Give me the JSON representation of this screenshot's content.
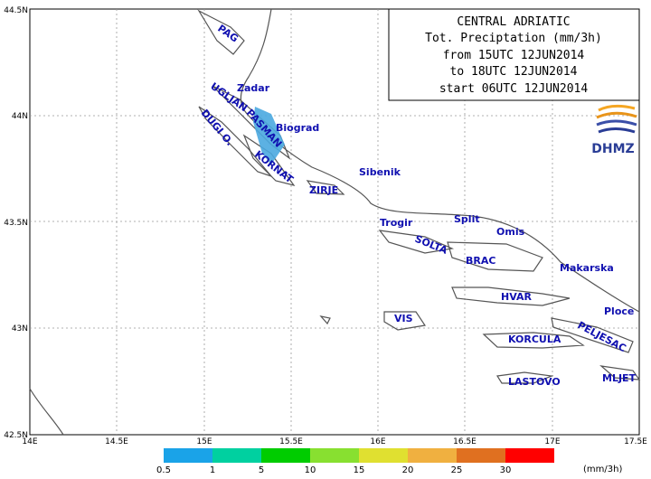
{
  "info": {
    "title": "CENTRAL ADRIATIC",
    "variable": "Tot. Preciptation (mm/3h)",
    "from": "from 15UTC 12JUN2014",
    "to": "to 18UTC 12JUN2014",
    "start": "start 06UTC 12JUN2014"
  },
  "logo": {
    "text": "DHMZ"
  },
  "axes": {
    "lat_labels": [
      "44.5N",
      "44N",
      "43.5N",
      "43N",
      "42.5N"
    ],
    "lon_labels": [
      "14E",
      "14.5E",
      "15E",
      "15.5E",
      "16E",
      "16.5E",
      "17E",
      "17.5E"
    ]
  },
  "places": [
    "PAG",
    "Zadar",
    "UGLJAN",
    "PASMAN",
    "Biograd",
    "DUGI O.",
    "KORNAT",
    "Sibenik",
    "ZIRJE",
    "Trogir",
    "Split",
    "Omis",
    "SOLTA",
    "BRAC",
    "Makarska",
    "HVAR",
    "Ploce",
    "VIS",
    "KORCULA",
    "PELJESAC",
    "LASTOVO",
    "MLJET"
  ],
  "legend": {
    "unit": "(mm/3h)",
    "thresholds": [
      "0.5",
      "1",
      "5",
      "10",
      "15",
      "20",
      "25",
      "30"
    ],
    "colors": [
      "#1aa3e8",
      "#00d0a0",
      "#00cc00",
      "#88e030",
      "#e0e030",
      "#f0b040",
      "#e07020",
      "#ff0000"
    ]
  },
  "precip_area": {
    "value_range": "0.5-1",
    "color": "#4aa8e0"
  }
}
